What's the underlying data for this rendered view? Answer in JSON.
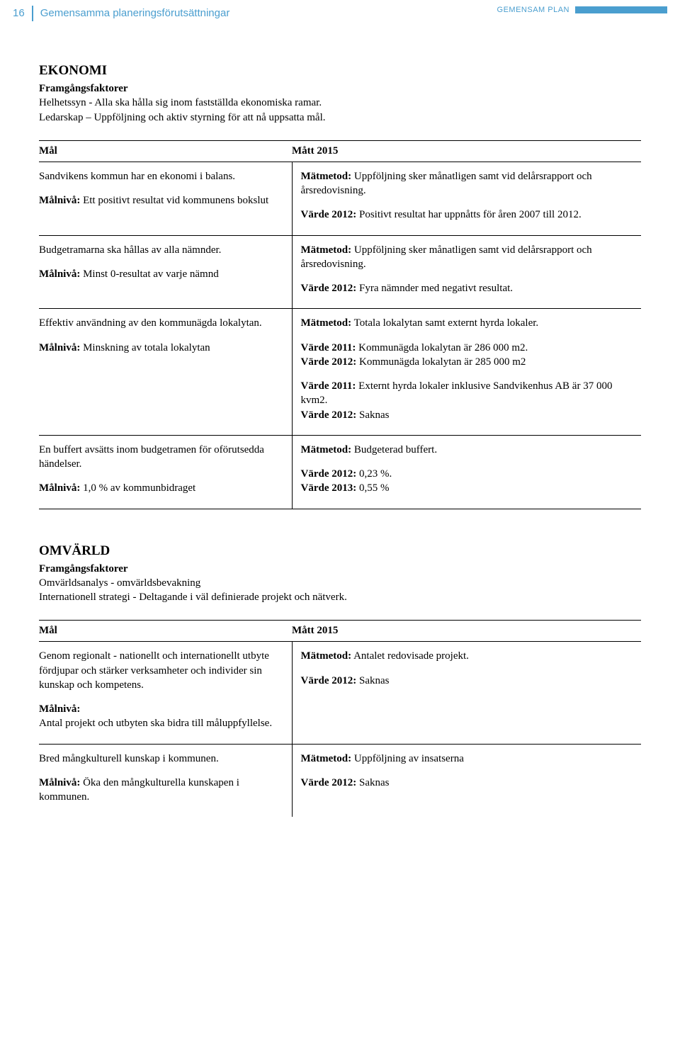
{
  "header": {
    "page_number": "16",
    "section_title": "Gemensamma planeringsförutsättningar",
    "plan_tag": "GEMENSAM PLAN",
    "accent_color": "#4a9ecf",
    "text_color": "#000000",
    "background_color": "#ffffff"
  },
  "ekonomi": {
    "heading": "EKONOMI",
    "subheading": "Framgångsfaktorer",
    "intro_line1": "Helhetssyn - Alla ska hålla sig inom fastställda ekonomiska ramar.",
    "intro_line2": "Ledarskap – Uppföljning och aktiv styrning för att nå uppsatta mål.",
    "col_mal": "Mål",
    "col_matt": "Mått 2015",
    "rows": [
      {
        "left_p1": "Sandvikens kommun har en ekonomi i balans.",
        "left_p2a": "Målnivå:",
        "left_p2b": " Ett positivt resultat vid kommunens bokslut",
        "right_p1a": "Mätmetod:",
        "right_p1b": " Uppföljning sker månatligen samt vid delårsrapport och årsredovisning.",
        "right_p2a": "Värde 2012:",
        "right_p2b": " Positivt resultat har uppnåtts för åren 2007 till 2012."
      },
      {
        "left_p1": "Budgetramarna ska hållas av alla nämnder.",
        "left_p2a": "Målnivå:",
        "left_p2b": " Minst 0-resultat av varje nämnd",
        "right_p1a": "Mätmetod:",
        "right_p1b": " Uppföljning sker månatligen samt vid delårsrapport och årsredovisning.",
        "right_p2a": "Värde 2012:",
        "right_p2b": " Fyra nämnder med negativt resultat."
      },
      {
        "left_p1": "Effektiv användning av den kommunägda lokalytan.",
        "left_p2a": "Målnivå:",
        "left_p2b": " Minskning av totala lokalytan",
        "right_p1a": "Mätmetod:",
        "right_p1b": " Totala lokalytan samt externt hyrda lokaler.",
        "right_p2_l1a": "Värde 2011:",
        "right_p2_l1b": " Kommunägda lokalytan är 286 000 m2.",
        "right_p2_l2a": "Värde 2012:",
        "right_p2_l2b": " Kommunägda lokalytan är 285 000 m2",
        "right_p3_l1a": "Värde 2011:",
        "right_p3_l1b": " Externt hyrda lokaler inklusive Sandvikenhus AB är 37 000 kvm2.",
        "right_p3_l2a": "Värde 2012:",
        "right_p3_l2b": " Saknas"
      },
      {
        "left_p1": "En buffert avsätts inom budgetramen för oförutsedda händelser.",
        "left_p2a": "Målnivå:",
        "left_p2b": " 1,0 % av kommunbidraget",
        "right_p1a": "Mätmetod:",
        "right_p1b": " Budgeterad buffert.",
        "right_p2_l1a": "Värde 2012:",
        "right_p2_l1b": " 0,23 %.",
        "right_p2_l2a": "Värde 2013:",
        "right_p2_l2b": " 0,55 %"
      }
    ]
  },
  "omvarld": {
    "heading": "OMVÄRLD",
    "subheading": "Framgångsfaktorer",
    "intro_line1": "Omvärldsanalys - omvärldsbevakning",
    "intro_line2": "Internationell strategi - Deltagande i väl definierade projekt och nätverk.",
    "col_mal": "Mål",
    "col_matt": "Mått 2015",
    "rows": [
      {
        "left_p1": "Genom regionalt - nationellt och internationellt utbyte fördjupar och stärker verksamheter och individer sin kunskap och kompetens.",
        "left_p2a": "Målnivå:",
        "left_p2b": "",
        "left_p3": "Antal projekt och utbyten ska bidra till måluppfyllelse.",
        "right_p1a": "Mätmetod:",
        "right_p1b": " Antalet redovisade projekt.",
        "right_p2a": "Värde 2012:",
        "right_p2b": " Saknas"
      },
      {
        "left_p1": "Bred mångkulturell kunskap i kommunen.",
        "left_p2a": "Målnivå:",
        "left_p2b": " Öka den mångkulturella kunskapen i kommunen.",
        "right_p1a": "Mätmetod:",
        "right_p1b": " Uppföljning av insatserna",
        "right_p2a": "Värde 2012:",
        "right_p2b": " Saknas"
      }
    ]
  }
}
